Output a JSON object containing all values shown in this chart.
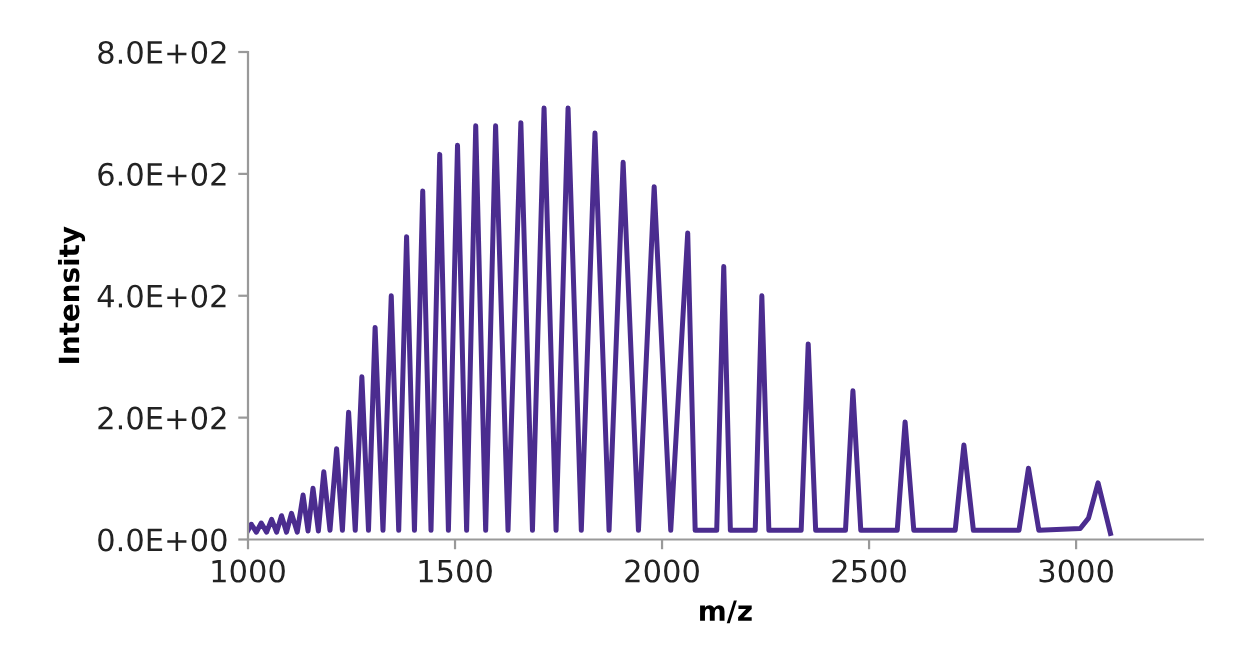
{
  "chart_data": {
    "type": "line",
    "xlabel": "m/z",
    "ylabel": "Intensity",
    "xlim": [
      1000,
      3306
    ],
    "xticks": [
      1000,
      1500,
      2000,
      2500,
      3000
    ],
    "ylim": [
      0,
      800
    ],
    "yticks": [
      {
        "value": 0,
        "label": "0.0E+00"
      },
      {
        "value": 200,
        "label": "2.0E+02"
      },
      {
        "value": 400,
        "label": "4.0E+02"
      },
      {
        "value": 600,
        "label": "6.0E+02"
      },
      {
        "value": 800,
        "label": "8.0E+02"
      }
    ],
    "grid": false,
    "marker": "none",
    "line_style": "solid",
    "series": [
      {
        "color": "#4b2c8f",
        "x": [
          1000,
          1008,
          1020,
          1032,
          1045,
          1057,
          1069,
          1081,
          1093,
          1105,
          1119,
          1133,
          1145,
          1157,
          1170,
          1183,
          1198,
          1214,
          1228,
          1243,
          1259,
          1275,
          1291,
          1307,
          1326,
          1346,
          1364,
          1383,
          1402,
          1422,
          1442,
          1463,
          1484,
          1506,
          1528,
          1550,
          1574,
          1598,
          1628,
          1659,
          1687,
          1715,
          1744,
          1773,
          1805,
          1838,
          1872,
          1906,
          1943,
          1981,
          2021,
          2062,
          2080,
          2132,
          2149,
          2165,
          2225,
          2241,
          2258,
          2336,
          2353,
          2371,
          2443,
          2461,
          2480,
          2568,
          2587,
          2608,
          2708,
          2729,
          2752,
          2862,
          2885,
          2910,
          3010,
          3030,
          3053,
          3083
        ],
        "values": [
          15,
          25,
          12,
          27,
          12,
          33,
          12,
          39,
          12,
          43,
          12,
          73,
          14,
          84,
          14,
          111,
          15,
          149,
          15,
          209,
          15,
          267,
          15,
          348,
          15,
          400,
          15,
          497,
          15,
          572,
          15,
          632,
          15,
          647,
          15,
          679,
          15,
          679,
          15,
          684,
          15,
          708,
          15,
          708,
          15,
          667,
          15,
          619,
          15,
          579,
          15,
          503,
          15,
          15,
          448,
          15,
          15,
          400,
          15,
          15,
          321,
          15,
          15,
          244,
          15,
          15,
          193,
          15,
          15,
          155,
          15,
          15,
          117,
          15,
          18,
          35,
          93,
          10
        ]
      }
    ]
  }
}
